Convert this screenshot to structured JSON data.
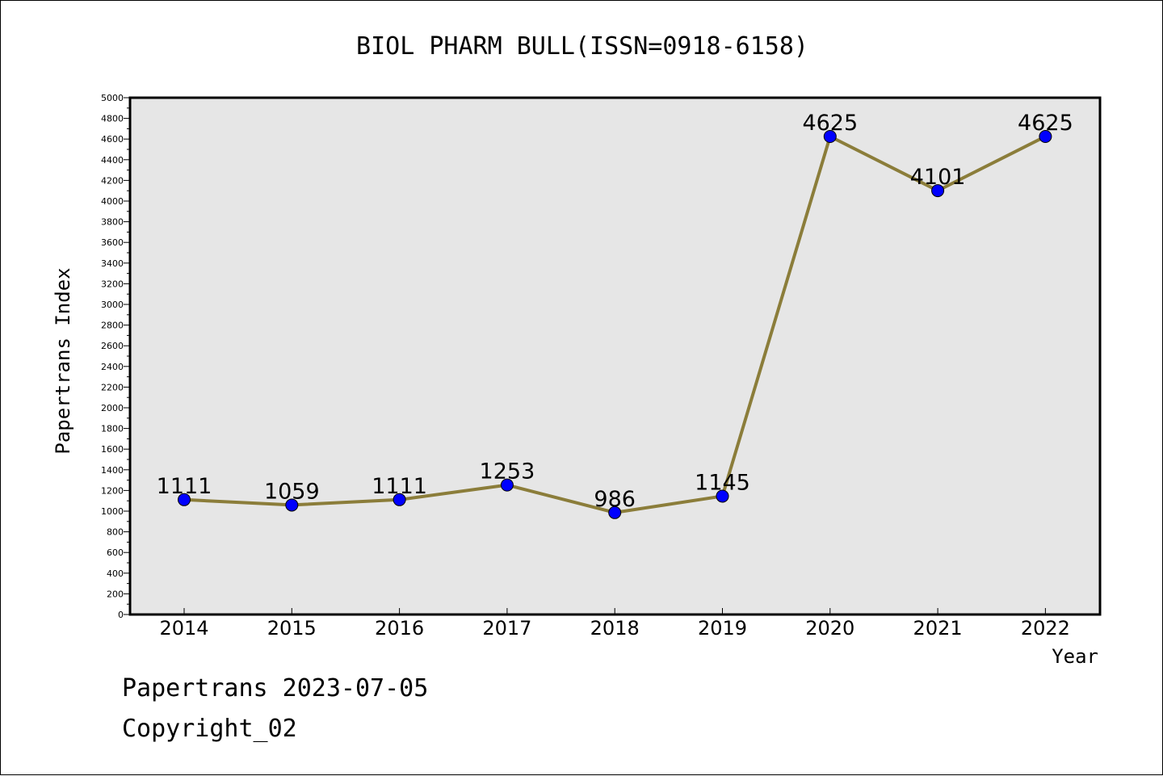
{
  "chart_data": {
    "type": "line",
    "title": "BIOL PHARM BULL(ISSN=0918-6158)",
    "xlabel": "Year",
    "ylabel": "Papertrans Index",
    "categories": [
      "2014",
      "2015",
      "2016",
      "2017",
      "2018",
      "2019",
      "2020",
      "2021",
      "2022"
    ],
    "series": [
      {
        "values": [
          1111,
          1059,
          1111,
          1253,
          986,
          1145,
          4625,
          4101,
          4625
        ]
      }
    ],
    "ylim": [
      0,
      5000
    ],
    "y_ticks": [
      0,
      200,
      400,
      600,
      800,
      1000,
      1200,
      1400,
      1600,
      1800,
      2000,
      2200,
      2400,
      2600,
      2800,
      3000,
      3200,
      3400,
      3600,
      3800,
      4000,
      4200,
      4400,
      4600,
      4800,
      5000
    ],
    "grid": false,
    "legend": "none",
    "colors": {
      "line": "#8b7d3a",
      "marker": "#0000ff",
      "plot_background": "#e6e6e6",
      "axes": "#000000"
    }
  },
  "footer": {
    "date_line": "Papertrans 2023-07-05",
    "copyright_line": "Copyright_02"
  }
}
